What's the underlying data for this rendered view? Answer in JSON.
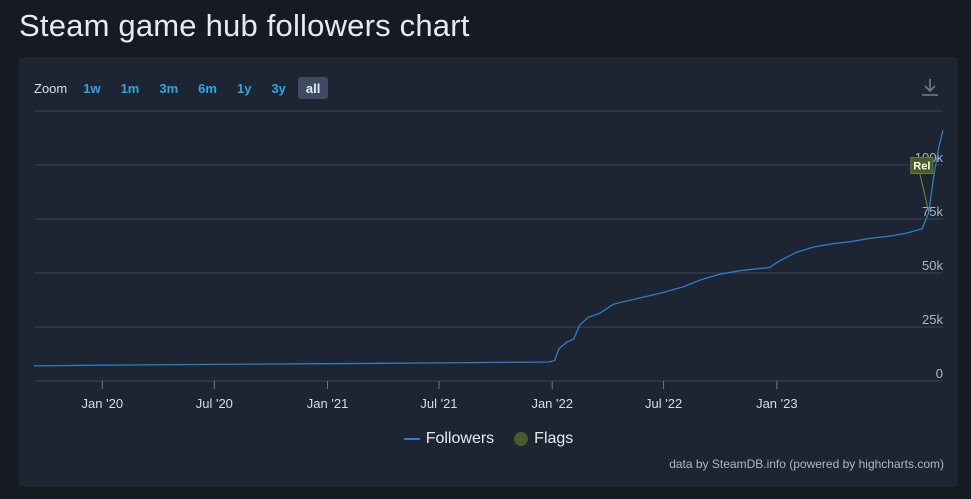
{
  "page": {
    "title": "Steam game hub followers chart"
  },
  "zoom": {
    "label": "Zoom",
    "buttons": [
      "1w",
      "1m",
      "3m",
      "6m",
      "1y",
      "3y",
      "all"
    ],
    "active": "all"
  },
  "colors": {
    "series": "#2b7fc6",
    "flag": "#4a5a2a",
    "grid": "#3a4352",
    "active_button": "#3e4b62"
  },
  "chart_data": {
    "type": "line",
    "title": "",
    "xlabel": "",
    "ylabel": "",
    "x_range": [
      "2019-09-12",
      "2023-09-28"
    ],
    "ylim": [
      0,
      125000
    ],
    "y_ticks": [
      0,
      25000,
      50000,
      75000,
      100000
    ],
    "y_tick_labels": [
      "0",
      "25k",
      "50k",
      "75k",
      "100k"
    ],
    "x_ticks": [
      "2020-01-01",
      "2020-07-01",
      "2021-01-01",
      "2021-07-01",
      "2022-01-01",
      "2022-07-01",
      "2023-01-01"
    ],
    "x_tick_labels": [
      "Jan '20",
      "Jul '20",
      "Jan '21",
      "Jul '21",
      "Jan '22",
      "Jul '22",
      "Jan '23"
    ],
    "grid": true,
    "legend_position": "bottom",
    "series": [
      {
        "name": "Followers",
        "color": "#2b7fc6",
        "points": [
          [
            "2019-09-12",
            7000
          ],
          [
            "2020-01-01",
            7300
          ],
          [
            "2020-07-01",
            7700
          ],
          [
            "2021-01-01",
            8000
          ],
          [
            "2021-06-25",
            8400
          ],
          [
            "2021-12-27",
            8800
          ],
          [
            "2022-01-05",
            9500
          ],
          [
            "2022-01-12",
            15000
          ],
          [
            "2022-01-25",
            18000
          ],
          [
            "2022-02-05",
            19500
          ],
          [
            "2022-02-15",
            26000
          ],
          [
            "2022-03-01",
            29500
          ],
          [
            "2022-03-20",
            31500
          ],
          [
            "2022-04-10",
            35500
          ],
          [
            "2022-05-01",
            37000
          ],
          [
            "2022-06-01",
            39000
          ],
          [
            "2022-07-01",
            41000
          ],
          [
            "2022-08-01",
            43500
          ],
          [
            "2022-09-01",
            47000
          ],
          [
            "2022-10-01",
            49500
          ],
          [
            "2022-11-01",
            51000
          ],
          [
            "2022-12-01",
            52000
          ],
          [
            "2022-12-20",
            52500
          ],
          [
            "2023-01-05",
            55500
          ],
          [
            "2023-02-01",
            59500
          ],
          [
            "2023-03-01",
            62000
          ],
          [
            "2023-04-01",
            63500
          ],
          [
            "2023-05-01",
            64500
          ],
          [
            "2023-06-01",
            66000
          ],
          [
            "2023-07-01",
            67000
          ],
          [
            "2023-08-01",
            68500
          ],
          [
            "2023-08-25",
            70500
          ],
          [
            "2023-09-05",
            78000
          ],
          [
            "2023-09-13",
            95000
          ],
          [
            "2023-09-21",
            108000
          ],
          [
            "2023-09-28",
            116000
          ]
        ]
      }
    ],
    "flags": [
      {
        "name": "Flags",
        "label": "Rel",
        "x": "2023-09-05",
        "y": 78000
      }
    ]
  },
  "legend": {
    "followers": "Followers",
    "flags": "Flags"
  },
  "credits": "data by SteamDB.info (powered by highcharts.com)"
}
